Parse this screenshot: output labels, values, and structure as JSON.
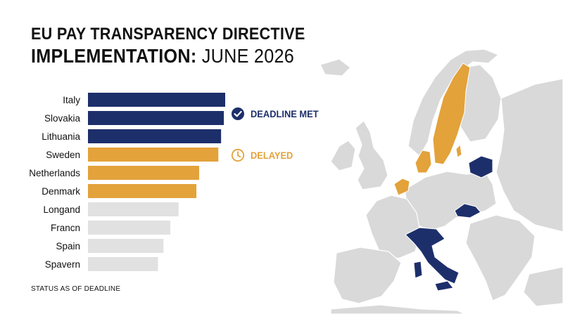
{
  "title": {
    "line1": "EU PAY TRANSPARENCY DIRECTIVE",
    "line2_bold": "IMPLEMENTATION:",
    "line2_light": "JUNE 2026"
  },
  "legend": {
    "met": {
      "label": "DEADLINE MET",
      "icon": "check-circle-icon",
      "color": "#1d2f6b"
    },
    "delayed": {
      "label": "DELAYED",
      "icon": "clock-icon",
      "color": "#e3a23a"
    }
  },
  "footnote": "STATUS AS OF DEADLINE",
  "colors": {
    "met": "#1d2f6b",
    "delayed": "#e3a23a",
    "other": "#e1e1e1",
    "map_land": "#d9d9d9"
  },
  "chart_data": {
    "type": "bar",
    "orientation": "horizontal",
    "categories": [
      "Italy",
      "Slovakia",
      "Lithuania",
      "Sweden",
      "Netherlands",
      "Denmark",
      "Longand",
      "Francn",
      "Spain",
      "Spavern"
    ],
    "values": [
      100,
      99,
      97,
      95,
      81,
      79,
      66,
      60,
      55,
      51
    ],
    "status": [
      "met",
      "met",
      "met",
      "delayed",
      "delayed",
      "delayed",
      "other",
      "other",
      "other",
      "other"
    ],
    "xlim": [
      0,
      100
    ],
    "grid": false,
    "axes_visible": false
  }
}
